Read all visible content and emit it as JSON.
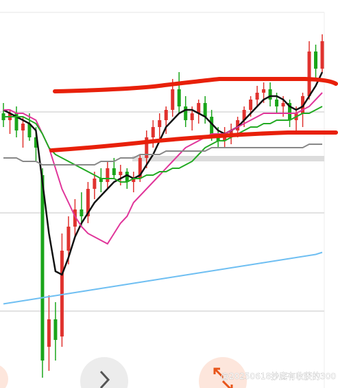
{
  "chart_data": {
    "type": "candlestick",
    "categories": [
      null,
      null,
      null,
      null,
      null,
      null,
      null,
      null,
      null,
      null,
      null,
      null,
      null,
      null,
      null,
      null,
      null,
      null,
      null,
      null,
      null,
      null,
      null,
      null,
      null,
      null,
      null,
      null,
      null,
      null,
      null,
      null,
      null,
      null,
      null,
      null,
      null,
      null,
      null,
      null,
      null,
      null,
      null,
      null,
      null,
      null,
      null,
      null,
      null,
      null
    ],
    "ylim": [
      0,
      113
    ],
    "up_color": "#e0322e",
    "down_color": "#1aa51a",
    "candles": {
      "open": [
        80,
        78,
        80,
        75,
        77,
        73,
        62,
        12,
        20,
        15,
        40,
        47,
        52,
        50,
        58,
        61,
        60,
        64,
        62,
        63,
        60,
        61,
        67,
        73,
        76,
        78,
        81,
        87,
        82,
        78,
        80,
        83,
        79,
        74,
        72,
        74,
        75,
        78,
        81,
        84,
        86,
        87,
        84,
        82,
        83,
        78,
        80,
        85,
        98,
        93
      ],
      "high": [
        83,
        81,
        82,
        79,
        80,
        76,
        64,
        27,
        25,
        45,
        50,
        55,
        57,
        60,
        63,
        64,
        66,
        67,
        65,
        64,
        63,
        68,
        75,
        78,
        80,
        82,
        90,
        92,
        85,
        82,
        84,
        85,
        81,
        76,
        76,
        77,
        79,
        82,
        85,
        88,
        89,
        89,
        86,
        85,
        84,
        82,
        86,
        101,
        100,
        103
      ],
      "low": [
        76,
        74,
        73,
        70,
        72,
        66,
        3,
        5,
        8,
        12,
        36,
        44,
        47,
        48,
        55,
        57,
        58,
        61,
        59,
        58,
        57,
        60,
        64,
        70,
        72,
        74,
        79,
        80,
        76,
        75,
        77,
        77,
        72,
        70,
        70,
        71,
        73,
        76,
        79,
        82,
        83,
        82,
        80,
        79,
        76,
        74,
        76,
        84,
        90,
        92
      ],
      "close": [
        78,
        80,
        75,
        77,
        73,
        70,
        8,
        20,
        14,
        40,
        47,
        52,
        50,
        58,
        61,
        60,
        64,
        62,
        63,
        60,
        61,
        67,
        73,
        76,
        78,
        81,
        87,
        82,
        78,
        80,
        83,
        79,
        74,
        72,
        74,
        75,
        78,
        81,
        84,
        86,
        87,
        84,
        82,
        83,
        78,
        80,
        85,
        98,
        93,
        101
      ]
    },
    "series": [
      {
        "name": null,
        "color": "#111111",
        "values": [
          81,
          80,
          79,
          78,
          77,
          75,
          60,
          45,
          34,
          33,
          38,
          44,
          48,
          51,
          54,
          56,
          58,
          60,
          61,
          62,
          61,
          62,
          65,
          68,
          72,
          76,
          78,
          80,
          81,
          81,
          80,
          79,
          77,
          75,
          74,
          75,
          76,
          78,
          80,
          82,
          84,
          85,
          85,
          84,
          82,
          81,
          82,
          85,
          88,
          92
        ]
      },
      {
        "name": null,
        "color": "#e0359a",
        "values": [
          81,
          81,
          80,
          80,
          79,
          78,
          74,
          70,
          64,
          58,
          54,
          50,
          47,
          45,
          44,
          43,
          42,
          45,
          48,
          50,
          54,
          56,
          58,
          60,
          62,
          64,
          66,
          68,
          70,
          71,
          72,
          73,
          74,
          74,
          74,
          75,
          76,
          77,
          78,
          79,
          80,
          80,
          80,
          80,
          80,
          80,
          81,
          82,
          84,
          86
        ]
      },
      {
        "name": null,
        "color": "#22aa22",
        "values": [
          79,
          79,
          79,
          79,
          78,
          77,
          74,
          70,
          68,
          67,
          66,
          65,
          64,
          63,
          62,
          61,
          61,
          61,
          60,
          60,
          61,
          61,
          62,
          62,
          63,
          63,
          64,
          64,
          65,
          66,
          68,
          70,
          71,
          72,
          72,
          73,
          74,
          75,
          76,
          76,
          77,
          77,
          78,
          78,
          78,
          79,
          80,
          80,
          81,
          82
        ]
      },
      {
        "name": null,
        "color": "#888888",
        "values": [
          67,
          67,
          67,
          66,
          66,
          66,
          65,
          65,
          65,
          65,
          65,
          65,
          65,
          65,
          65,
          66,
          66,
          66,
          67,
          67,
          67,
          68,
          68,
          68,
          68,
          69,
          69,
          69,
          69,
          69,
          69,
          69,
          70,
          70,
          70,
          70,
          70,
          70,
          70,
          70,
          70,
          70,
          70,
          70,
          70,
          70,
          70,
          71,
          71,
          71
        ]
      },
      {
        "name": null,
        "color": "#6fbff2",
        "values": [
          24.5,
          24.8,
          25.1,
          25.4,
          25.7,
          26,
          26.3,
          26.6,
          26.9,
          27.2,
          27.5,
          27.8,
          28.1,
          28.4,
          28.7,
          29,
          29.3,
          29.6,
          29.9,
          30.2,
          30.5,
          30.8,
          31.1,
          31.4,
          31.7,
          32,
          32.3,
          32.6,
          32.9,
          33.2,
          33.5,
          33.8,
          34.1,
          34.4,
          34.7,
          35,
          35.3,
          35.6,
          35.9,
          36.2,
          36.5,
          36.8,
          37.1,
          37.4,
          37.7,
          38,
          38.3,
          38.6,
          38.9,
          39.5
        ]
      }
    ]
  },
  "watermark": "@20250618抄底有收获的300"
}
